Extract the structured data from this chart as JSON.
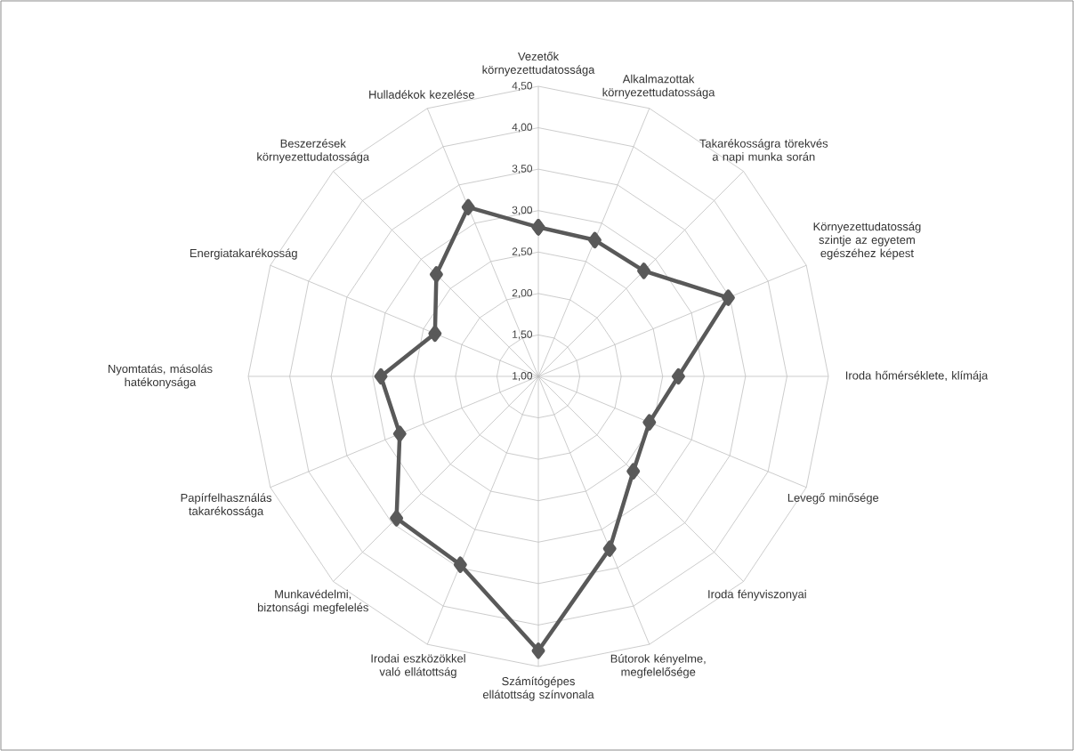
{
  "chart_data": {
    "type": "radar",
    "categories": [
      "Vezetők környezettudatossága",
      "Alkalmazottak környezettudatossága",
      "Takarékosságra törekvés a napi munka során",
      "Környezettudatosság szintje az egyetem egészéhez képest",
      "Iroda hőmérséklete, klímája",
      "Levegő minősége",
      "Iroda fényviszonyai",
      "Bútorok kényelme, megfelelősége",
      "Számítógépes ellátottság színvonala",
      "Irodai eszközökkel való ellátottság",
      "Munkavédelmi, biztonsági megfelelés",
      "Papírfelhasználás takarékossága",
      "Nyomtatás, másolás hatékonysága",
      "Energiatakarékosság",
      "Beszerzések környezettudatossága",
      "Hulladékok kezelése"
    ],
    "series": [
      {
        "color": "#595959",
        "values": [
          2.8,
          2.78,
          2.8,
          3.48,
          2.69,
          2.45,
          2.62,
          3.25,
          4.31,
          3.46,
          3.42,
          2.81,
          2.9,
          2.35,
          2.74,
          3.21
        ]
      }
    ],
    "ylim": [
      1,
      4.5
    ],
    "yticks": [
      {
        "value": 1,
        "label": "1,00"
      },
      {
        "value": 1.5,
        "label": "1,50"
      },
      {
        "value": 2,
        "label": "2,00"
      },
      {
        "value": 2.5,
        "label": "2,50"
      },
      {
        "value": 3,
        "label": "3,00"
      },
      {
        "value": 3.5,
        "label": "3,50"
      },
      {
        "value": 4,
        "label": "4,00"
      },
      {
        "value": 4.5,
        "label": "4,50"
      }
    ],
    "grid": true,
    "marker": "diamond",
    "line_style": "solid",
    "legend": false
  }
}
